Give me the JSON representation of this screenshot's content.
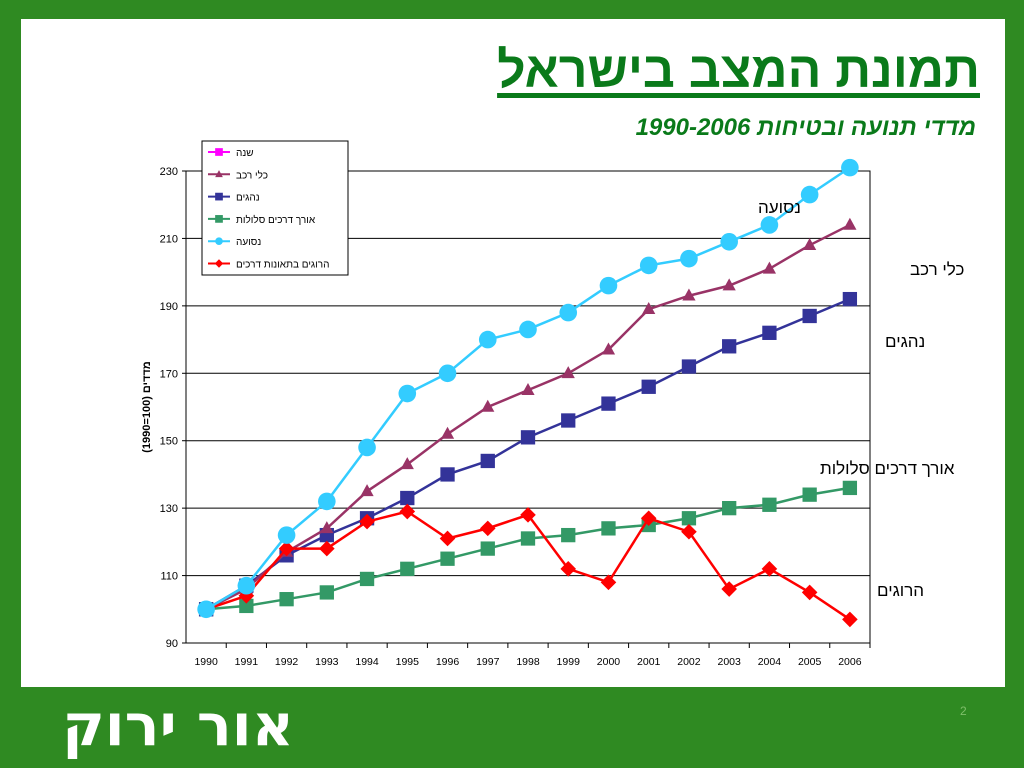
{
  "slide": {
    "title": "תמונת המצב בישראל",
    "subtitle": "מדדי תנועה ובטיחות 1990-2006",
    "logo_text": "אור ירוק",
    "page_number": "2"
  },
  "colors": {
    "background_green": "#2f8a22",
    "title_green": "#0a7a1a"
  },
  "chart_data": {
    "type": "line",
    "ylabel": "מדדים (100=1990)",
    "xlabel": "",
    "ylim": [
      90,
      230
    ],
    "yticks": [
      90,
      110,
      130,
      150,
      170,
      190,
      210,
      230
    ],
    "grid": true,
    "legend_position": "top-left",
    "x": [
      "1990",
      "1991",
      "1992",
      "1993",
      "1994",
      "1995",
      "1996",
      "1997",
      "1998",
      "1999",
      "2000",
      "2001",
      "2002",
      "2003",
      "2004",
      "2005",
      "2006"
    ],
    "legend": [
      {
        "name": "שנה",
        "color": "#ff00ff",
        "marker": "square"
      },
      {
        "name": "כלי רכב",
        "color": "#993366",
        "marker": "triangle"
      },
      {
        "name": "נהגים",
        "color": "#333399",
        "marker": "square"
      },
      {
        "name": "אורך דרכים סלולות",
        "color": "#339966",
        "marker": "square"
      },
      {
        "name": "נסועה",
        "color": "#33ccff",
        "marker": "circle"
      },
      {
        "name": "הרוגים בתאונות דרכים",
        "color": "#ff0000",
        "marker": "diamond"
      }
    ],
    "series": [
      {
        "name": "נסועה",
        "color": "#33ccff",
        "marker": "circle",
        "label": "נסועה",
        "values": [
          100,
          107,
          122,
          132,
          148,
          164,
          170,
          180,
          183,
          188,
          196,
          202,
          204,
          209,
          214,
          223,
          231
        ]
      },
      {
        "name": "כלי רכב",
        "color": "#993366",
        "marker": "triangle",
        "label": "כלי רכב",
        "values": [
          100,
          106,
          117,
          124,
          135,
          143,
          152,
          160,
          165,
          170,
          177,
          189,
          193,
          196,
          201,
          208,
          214
        ]
      },
      {
        "name": "נהגים",
        "color": "#333399",
        "marker": "square",
        "label": "נהגים",
        "values": [
          100,
          107,
          116,
          122,
          127,
          133,
          140,
          144,
          151,
          156,
          161,
          166,
          172,
          178,
          182,
          187,
          192
        ]
      },
      {
        "name": "אורך דרכים סלולות",
        "color": "#339966",
        "marker": "square",
        "label": "אורך דרכים סלולות",
        "values": [
          100,
          101,
          103,
          105,
          109,
          112,
          115,
          118,
          121,
          122,
          124,
          125,
          127,
          130,
          131,
          134,
          136
        ]
      },
      {
        "name": "הרוגים בתאונות דרכים",
        "color": "#ff0000",
        "marker": "diamond",
        "label": "הרוגים",
        "values": [
          100,
          104,
          118,
          118,
          126,
          129,
          121,
          124,
          128,
          112,
          108,
          127,
          123,
          106,
          112,
          105,
          97
        ]
      }
    ]
  }
}
